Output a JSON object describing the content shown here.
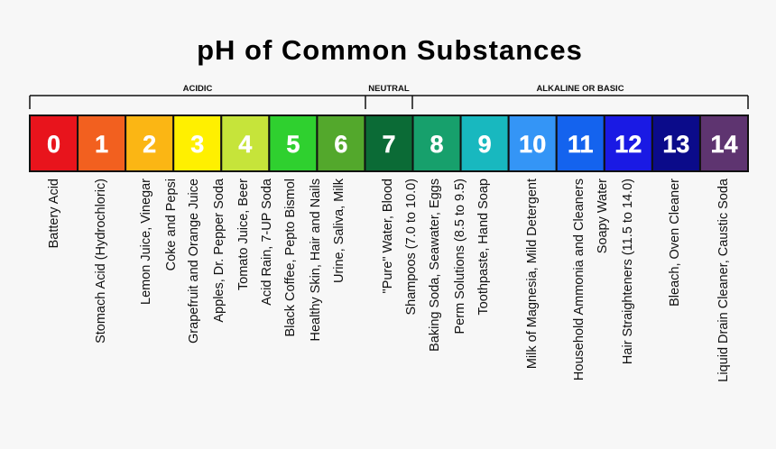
{
  "title": "pH of Common Substances",
  "ranges": [
    "ACIDIC",
    "NEUTRAL",
    "ALKALINE OR BASIC"
  ],
  "scale": [
    {
      "label": "0",
      "color": "#e8141c",
      "substances": [
        "Battery Acid"
      ]
    },
    {
      "label": "1",
      "color": "#f2601f",
      "substances": [
        "Stomach Acid (Hydrochloric)"
      ]
    },
    {
      "label": "2",
      "color": "#fbb614",
      "substances": [
        "Lemon Juice, Vinegar",
        "Coke and Pepsi"
      ]
    },
    {
      "label": "3",
      "color": "#fff000",
      "substances": [
        "Grapefruit and Orange Juice",
        "Apples, Dr. Pepper Soda"
      ]
    },
    {
      "label": "4",
      "color": "#c6e43a",
      "substances": [
        "Tomato Juice, Beer",
        "Acid Rain, 7-UP Soda"
      ]
    },
    {
      "label": "5",
      "color": "#2fd02f",
      "substances": [
        "Black Coffee, Pepto Bismol",
        "Healthy Skin, Hair and Nails"
      ]
    },
    {
      "label": "6",
      "color": "#53a82c",
      "substances": [
        "Urine, Saliva, Milk"
      ]
    },
    {
      "label": "7",
      "color": "#0b6b36",
      "substances": [
        "\"Pure\" Water, Blood",
        "Shampoos (7.0 to 10.0)"
      ]
    },
    {
      "label": "8",
      "color": "#17a06c",
      "substances": [
        "Baking Soda, Seawater, Eggs",
        "Perm Solutions (8.5 to 9.5)"
      ]
    },
    {
      "label": "9",
      "color": "#18b8bf",
      "substances": [
        "Toothpaste, Hand Soap"
      ]
    },
    {
      "label": "10",
      "color": "#3495f6",
      "substances": [
        "Milk of Magnesia, Mild Detergent"
      ]
    },
    {
      "label": "11",
      "color": "#1463ee",
      "substances": [
        "Household Ammonia and Cleaners",
        "Soapy Water"
      ]
    },
    {
      "label": "12",
      "color": "#1a1ae4",
      "substances": [
        "Hair Straighteners (11.5 to 14.0)"
      ]
    },
    {
      "label": "13",
      "color": "#0b0b8a",
      "substances": [
        "Bleach, Oven Cleaner"
      ]
    },
    {
      "label": "14",
      "color": "#5e3470",
      "substances": [
        "Liquid Drain Cleaner, Caustic Soda"
      ]
    }
  ]
}
